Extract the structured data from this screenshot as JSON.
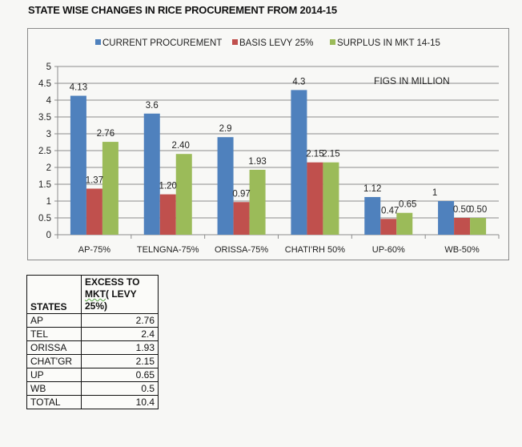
{
  "page_title": "STATE WISE CHANGES IN RICE PROCUREMENT FROM 2014-15",
  "chart_data": {
    "type": "bar",
    "title": "",
    "annotation": "FIGS IN MILLION",
    "xlabel": "",
    "ylabel": "",
    "ylim": [
      0,
      5
    ],
    "yticks": [
      0,
      0.5,
      1,
      1.5,
      2,
      2.5,
      3,
      3.5,
      4,
      4.5,
      5
    ],
    "ytick_labels": [
      "0",
      "0.5",
      "1",
      "1.5",
      "2",
      "2.5",
      "3",
      "3.5",
      "4",
      "4.5",
      "5"
    ],
    "grid": true,
    "legend_position": "top",
    "categories": [
      "AP-75%",
      "TELNGNA-75%",
      "ORISSA-75%",
      "CHATI'RH 50%",
      "UP-60%",
      "WB-50%"
    ],
    "series": [
      {
        "name": "CURRENT PROCUREMENT",
        "color": "#4F81BD",
        "values": [
          4.13,
          3.6,
          2.9,
          4.3,
          1.12,
          1
        ],
        "labels": [
          "4.13",
          "3.6",
          "2.9",
          "4.3",
          "1.12",
          "1"
        ]
      },
      {
        "name": "BASIS LEVY  25%",
        "color": "#C0504D",
        "values": [
          1.37,
          1.2,
          0.97,
          2.15,
          0.47,
          0.5
        ],
        "labels": [
          "1.37",
          "1.20",
          "0.97",
          "2.15",
          "0.47",
          "0.50"
        ]
      },
      {
        "name": "SURPLUS IN MKT 14-15",
        "color": "#9BBB59",
        "values": [
          2.76,
          2.4,
          1.93,
          2.15,
          0.65,
          0.5
        ],
        "labels": [
          "2.76",
          "2.40",
          "1.93",
          "2.15",
          "0.65",
          "0.50"
        ]
      }
    ]
  },
  "table": {
    "headers": {
      "states": "STATES",
      "excess_line1": "EXCESS TO",
      "excess_line2_squiggle": "MKT",
      "excess_line2_rest": "( LEVY",
      "excess_line3": "25%)"
    },
    "rows": [
      {
        "state": "AP",
        "value": "2.76"
      },
      {
        "state": "TEL",
        "value": "2.4"
      },
      {
        "state": "ORISSA",
        "value": "1.93"
      },
      {
        "state": "CHAT'GR",
        "value": "2.15"
      },
      {
        "state": "UP",
        "value": "0.65"
      },
      {
        "state": "WB",
        "value": "0.5"
      },
      {
        "state": "TOTAL",
        "value": "10.4"
      }
    ]
  }
}
